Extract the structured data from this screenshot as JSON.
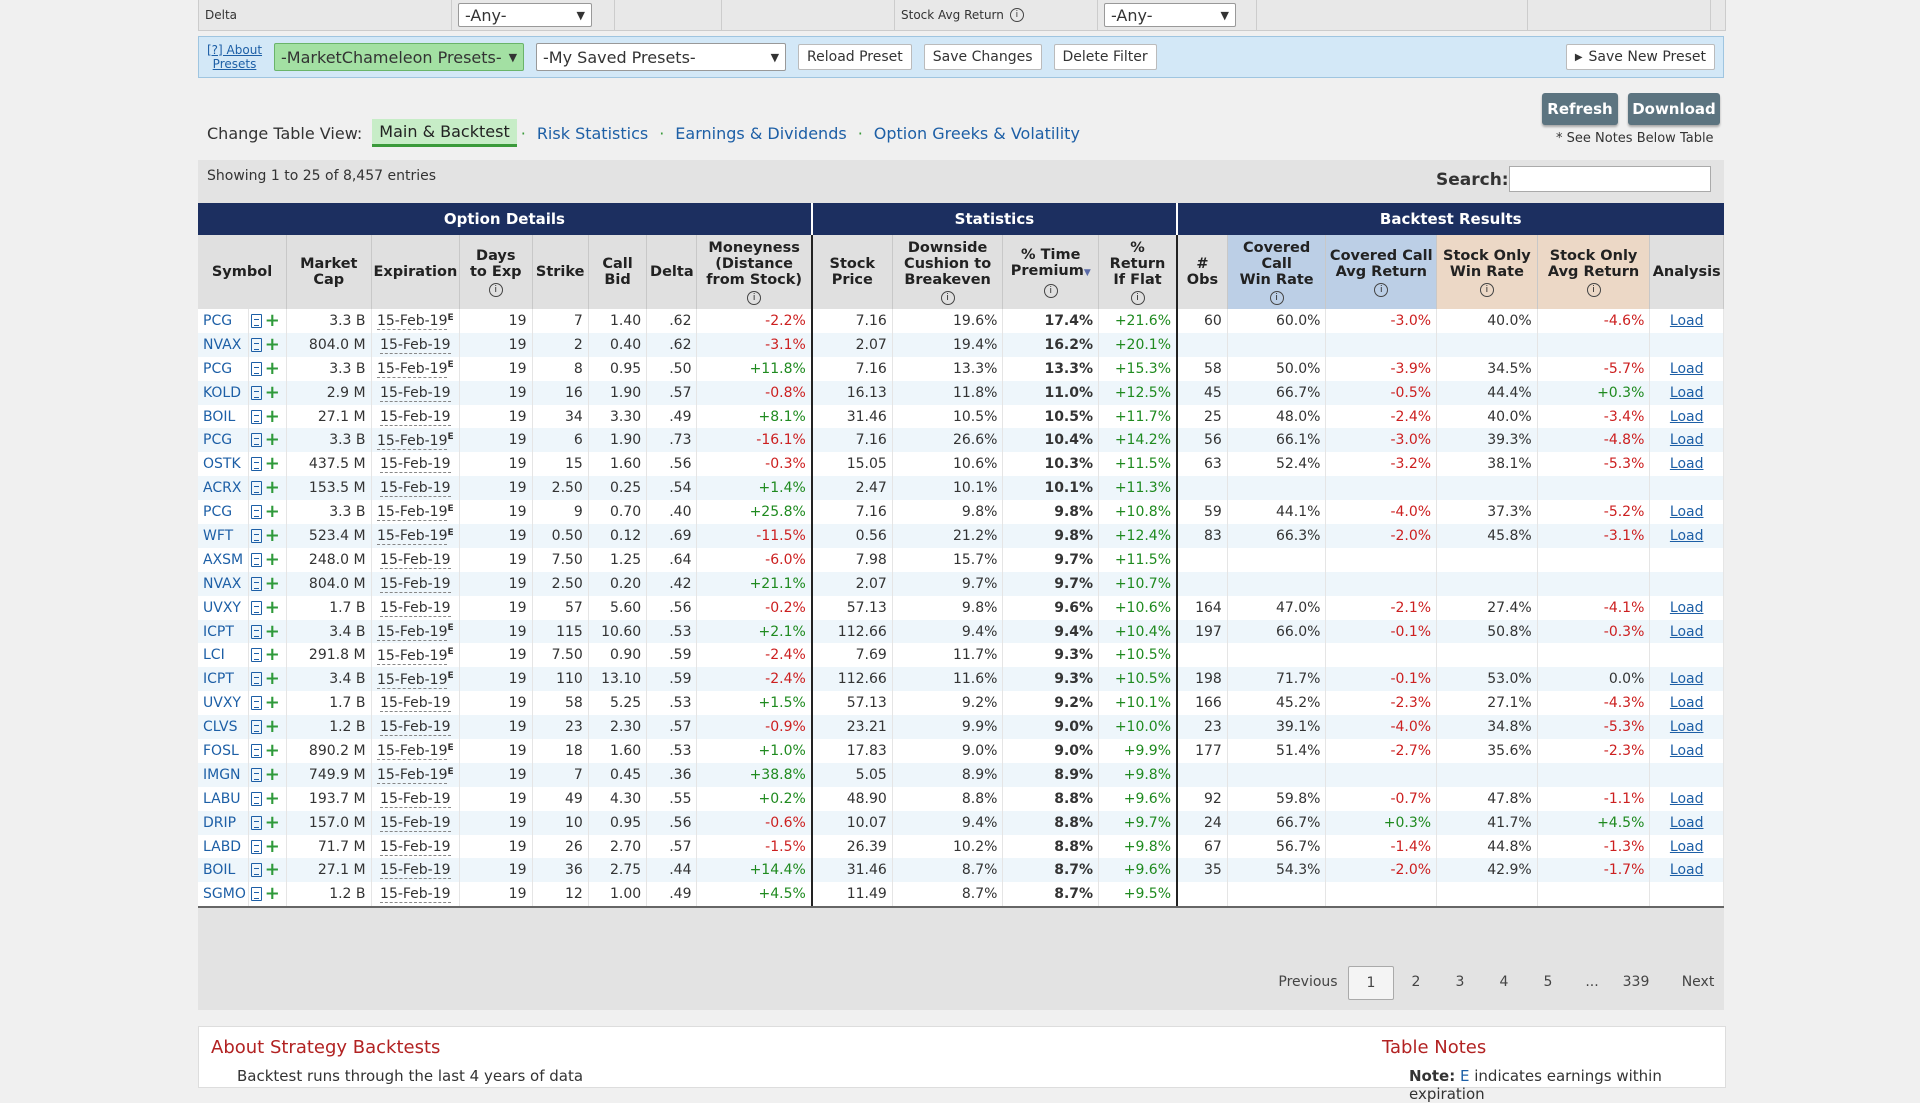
{
  "filters": {
    "delta_label": "Delta",
    "delta_value": "-Any-",
    "stock_avg_label": "Stock Avg Return",
    "stock_avg_value": "-Any-"
  },
  "presets": {
    "about_line1": "[?] About",
    "about_line2": "Presets",
    "mc_presets": "-MarketChameleon Presets-",
    "saved_presets": "-My Saved Presets-",
    "reload": "Reload Preset",
    "save_changes": "Save Changes",
    "delete": "Delete Filter",
    "save_new": "Save New Preset"
  },
  "actions": {
    "refresh": "Refresh",
    "download": "Download",
    "note": "* See Notes Below Table"
  },
  "view": {
    "label": "Change Table View:",
    "tabs": [
      "Main & Backtest",
      "Risk Statistics",
      "Earnings & Dividends",
      "Option Greeks & Volatility"
    ]
  },
  "table": {
    "showing": "Showing 1 to 25 of 8,457 entries",
    "search_label": "Search:",
    "groups": [
      "Option Details",
      "Statistics",
      "Backtest Results"
    ],
    "headers": {
      "symbol": "Symbol",
      "mcap1": "Market",
      "mcap2": "Cap",
      "exp": "Expiration",
      "days1": "Days",
      "days2": "to Exp",
      "strike": "Strike",
      "bid1": "Call",
      "bid2": "Bid",
      "delta": "Delta",
      "mon1": "Moneyness",
      "mon2": "(Distance",
      "mon3": "from Stock)",
      "price1": "Stock",
      "price2": "Price",
      "cush1": "Downside",
      "cush2": "Cushion to",
      "cush3": "Breakeven",
      "tp1": "% Time",
      "tp2": "Premium",
      "rf1": "%",
      "rf2": "Return",
      "rf3": "If Flat",
      "obs1": "#",
      "obs2": "Obs",
      "cw1": "Covered",
      "cw2": "Call",
      "cw3": "Win Rate",
      "cr1": "Covered Call",
      "cr2": "Avg Return",
      "sw1": "Stock Only",
      "sw2": "Win Rate",
      "sr1": "Stock Only",
      "sr2": "Avg Return",
      "analysis": "Analysis"
    },
    "rows": [
      {
        "sym": "PCG",
        "mcap": "3.3 B",
        "exp": "15-Feb-19",
        "earn": true,
        "days": "19",
        "strike": "7",
        "bid": "1.40",
        "delta": ".62",
        "mon": "-2.2%",
        "price": "7.16",
        "cush": "19.6%",
        "tp": "17.4%",
        "rf": "+21.6%",
        "obs": "60",
        "cw": "60.0%",
        "cr": "-3.0%",
        "sw": "40.0%",
        "sr": "-4.6%",
        "load": "Load"
      },
      {
        "sym": "NVAX",
        "mcap": "804.0 M",
        "exp": "15-Feb-19",
        "earn": false,
        "days": "19",
        "strike": "2",
        "bid": "0.40",
        "delta": ".62",
        "mon": "-3.1%",
        "price": "2.07",
        "cush": "19.4%",
        "tp": "16.2%",
        "rf": "+20.1%",
        "obs": "",
        "cw": "",
        "cr": "",
        "sw": "",
        "sr": "",
        "load": ""
      },
      {
        "sym": "PCG",
        "mcap": "3.3 B",
        "exp": "15-Feb-19",
        "earn": true,
        "days": "19",
        "strike": "8",
        "bid": "0.95",
        "delta": ".50",
        "mon": "+11.8%",
        "price": "7.16",
        "cush": "13.3%",
        "tp": "13.3%",
        "rf": "+15.3%",
        "obs": "58",
        "cw": "50.0%",
        "cr": "-3.9%",
        "sw": "34.5%",
        "sr": "-5.7%",
        "load": "Load"
      },
      {
        "sym": "KOLD",
        "mcap": "2.9 M",
        "exp": "15-Feb-19",
        "earn": false,
        "days": "19",
        "strike": "16",
        "bid": "1.90",
        "delta": ".57",
        "mon": "-0.8%",
        "price": "16.13",
        "cush": "11.8%",
        "tp": "11.0%",
        "rf": "+12.5%",
        "obs": "45",
        "cw": "66.7%",
        "cr": "-0.5%",
        "sw": "44.4%",
        "sr": "+0.3%",
        "load": "Load"
      },
      {
        "sym": "BOIL",
        "mcap": "27.1 M",
        "exp": "15-Feb-19",
        "earn": false,
        "days": "19",
        "strike": "34",
        "bid": "3.30",
        "delta": ".49",
        "mon": "+8.1%",
        "price": "31.46",
        "cush": "10.5%",
        "tp": "10.5%",
        "rf": "+11.7%",
        "obs": "25",
        "cw": "48.0%",
        "cr": "-2.4%",
        "sw": "40.0%",
        "sr": "-3.4%",
        "load": "Load"
      },
      {
        "sym": "PCG",
        "mcap": "3.3 B",
        "exp": "15-Feb-19",
        "earn": true,
        "days": "19",
        "strike": "6",
        "bid": "1.90",
        "delta": ".73",
        "mon": "-16.1%",
        "price": "7.16",
        "cush": "26.6%",
        "tp": "10.4%",
        "rf": "+14.2%",
        "obs": "56",
        "cw": "66.1%",
        "cr": "-3.0%",
        "sw": "39.3%",
        "sr": "-4.8%",
        "load": "Load"
      },
      {
        "sym": "OSTK",
        "mcap": "437.5 M",
        "exp": "15-Feb-19",
        "earn": false,
        "days": "19",
        "strike": "15",
        "bid": "1.60",
        "delta": ".56",
        "mon": "-0.3%",
        "price": "15.05",
        "cush": "10.6%",
        "tp": "10.3%",
        "rf": "+11.5%",
        "obs": "63",
        "cw": "52.4%",
        "cr": "-3.2%",
        "sw": "38.1%",
        "sr": "-5.3%",
        "load": "Load"
      },
      {
        "sym": "ACRX",
        "mcap": "153.5 M",
        "exp": "15-Feb-19",
        "earn": false,
        "days": "19",
        "strike": "2.50",
        "bid": "0.25",
        "delta": ".54",
        "mon": "+1.4%",
        "price": "2.47",
        "cush": "10.1%",
        "tp": "10.1%",
        "rf": "+11.3%",
        "obs": "",
        "cw": "",
        "cr": "",
        "sw": "",
        "sr": "",
        "load": ""
      },
      {
        "sym": "PCG",
        "mcap": "3.3 B",
        "exp": "15-Feb-19",
        "earn": true,
        "days": "19",
        "strike": "9",
        "bid": "0.70",
        "delta": ".40",
        "mon": "+25.8%",
        "price": "7.16",
        "cush": "9.8%",
        "tp": "9.8%",
        "rf": "+10.8%",
        "obs": "59",
        "cw": "44.1%",
        "cr": "-4.0%",
        "sw": "37.3%",
        "sr": "-5.2%",
        "load": "Load"
      },
      {
        "sym": "WFT",
        "mcap": "523.4 M",
        "exp": "15-Feb-19",
        "earn": true,
        "days": "19",
        "strike": "0.50",
        "bid": "0.12",
        "delta": ".69",
        "mon": "-11.5%",
        "price": "0.56",
        "cush": "21.2%",
        "tp": "9.8%",
        "rf": "+12.4%",
        "obs": "83",
        "cw": "66.3%",
        "cr": "-2.0%",
        "sw": "45.8%",
        "sr": "-3.1%",
        "load": "Load"
      },
      {
        "sym": "AXSM",
        "mcap": "248.0 M",
        "exp": "15-Feb-19",
        "earn": false,
        "days": "19",
        "strike": "7.50",
        "bid": "1.25",
        "delta": ".64",
        "mon": "-6.0%",
        "price": "7.98",
        "cush": "15.7%",
        "tp": "9.7%",
        "rf": "+11.5%",
        "obs": "",
        "cw": "",
        "cr": "",
        "sw": "",
        "sr": "",
        "load": ""
      },
      {
        "sym": "NVAX",
        "mcap": "804.0 M",
        "exp": "15-Feb-19",
        "earn": false,
        "days": "19",
        "strike": "2.50",
        "bid": "0.20",
        "delta": ".42",
        "mon": "+21.1%",
        "price": "2.07",
        "cush": "9.7%",
        "tp": "9.7%",
        "rf": "+10.7%",
        "obs": "",
        "cw": "",
        "cr": "",
        "sw": "",
        "sr": "",
        "load": ""
      },
      {
        "sym": "UVXY",
        "mcap": "1.7 B",
        "exp": "15-Feb-19",
        "earn": false,
        "days": "19",
        "strike": "57",
        "bid": "5.60",
        "delta": ".56",
        "mon": "-0.2%",
        "price": "57.13",
        "cush": "9.8%",
        "tp": "9.6%",
        "rf": "+10.6%",
        "obs": "164",
        "cw": "47.0%",
        "cr": "-2.1%",
        "sw": "27.4%",
        "sr": "-4.1%",
        "load": "Load"
      },
      {
        "sym": "ICPT",
        "mcap": "3.4 B",
        "exp": "15-Feb-19",
        "earn": true,
        "days": "19",
        "strike": "115",
        "bid": "10.60",
        "delta": ".53",
        "mon": "+2.1%",
        "price": "112.66",
        "cush": "9.4%",
        "tp": "9.4%",
        "rf": "+10.4%",
        "obs": "197",
        "cw": "66.0%",
        "cr": "-0.1%",
        "sw": "50.8%",
        "sr": "-0.3%",
        "load": "Load"
      },
      {
        "sym": "LCI",
        "mcap": "291.8 M",
        "exp": "15-Feb-19",
        "earn": true,
        "days": "19",
        "strike": "7.50",
        "bid": "0.90",
        "delta": ".59",
        "mon": "-2.4%",
        "price": "7.69",
        "cush": "11.7%",
        "tp": "9.3%",
        "rf": "+10.5%",
        "obs": "",
        "cw": "",
        "cr": "",
        "sw": "",
        "sr": "",
        "load": ""
      },
      {
        "sym": "ICPT",
        "mcap": "3.4 B",
        "exp": "15-Feb-19",
        "earn": true,
        "days": "19",
        "strike": "110",
        "bid": "13.10",
        "delta": ".59",
        "mon": "-2.4%",
        "price": "112.66",
        "cush": "11.6%",
        "tp": "9.3%",
        "rf": "+10.5%",
        "obs": "198",
        "cw": "71.7%",
        "cr": "-0.1%",
        "sw": "53.0%",
        "sr": "0.0%",
        "load": "Load"
      },
      {
        "sym": "UVXY",
        "mcap": "1.7 B",
        "exp": "15-Feb-19",
        "earn": false,
        "days": "19",
        "strike": "58",
        "bid": "5.25",
        "delta": ".53",
        "mon": "+1.5%",
        "price": "57.13",
        "cush": "9.2%",
        "tp": "9.2%",
        "rf": "+10.1%",
        "obs": "166",
        "cw": "45.2%",
        "cr": "-2.3%",
        "sw": "27.1%",
        "sr": "-4.3%",
        "load": "Load"
      },
      {
        "sym": "CLVS",
        "mcap": "1.2 B",
        "exp": "15-Feb-19",
        "earn": false,
        "days": "19",
        "strike": "23",
        "bid": "2.30",
        "delta": ".57",
        "mon": "-0.9%",
        "price": "23.21",
        "cush": "9.9%",
        "tp": "9.0%",
        "rf": "+10.0%",
        "obs": "23",
        "cw": "39.1%",
        "cr": "-4.0%",
        "sw": "34.8%",
        "sr": "-5.3%",
        "load": "Load"
      },
      {
        "sym": "FOSL",
        "mcap": "890.2 M",
        "exp": "15-Feb-19",
        "earn": true,
        "days": "19",
        "strike": "18",
        "bid": "1.60",
        "delta": ".53",
        "mon": "+1.0%",
        "price": "17.83",
        "cush": "9.0%",
        "tp": "9.0%",
        "rf": "+9.9%",
        "obs": "177",
        "cw": "51.4%",
        "cr": "-2.7%",
        "sw": "35.6%",
        "sr": "-2.3%",
        "load": "Load"
      },
      {
        "sym": "IMGN",
        "mcap": "749.9 M",
        "exp": "15-Feb-19",
        "earn": true,
        "days": "19",
        "strike": "7",
        "bid": "0.45",
        "delta": ".36",
        "mon": "+38.8%",
        "price": "5.05",
        "cush": "8.9%",
        "tp": "8.9%",
        "rf": "+9.8%",
        "obs": "",
        "cw": "",
        "cr": "",
        "sw": "",
        "sr": "",
        "load": ""
      },
      {
        "sym": "LABU",
        "mcap": "193.7 M",
        "exp": "15-Feb-19",
        "earn": false,
        "days": "19",
        "strike": "49",
        "bid": "4.30",
        "delta": ".55",
        "mon": "+0.2%",
        "price": "48.90",
        "cush": "8.8%",
        "tp": "8.8%",
        "rf": "+9.6%",
        "obs": "92",
        "cw": "59.8%",
        "cr": "-0.7%",
        "sw": "47.8%",
        "sr": "-1.1%",
        "load": "Load"
      },
      {
        "sym": "DRIP",
        "mcap": "157.0 M",
        "exp": "15-Feb-19",
        "earn": false,
        "days": "19",
        "strike": "10",
        "bid": "0.95",
        "delta": ".56",
        "mon": "-0.6%",
        "price": "10.07",
        "cush": "9.4%",
        "tp": "8.8%",
        "rf": "+9.7%",
        "obs": "24",
        "cw": "66.7%",
        "cr": "+0.3%",
        "sw": "41.7%",
        "sr": "+4.5%",
        "load": "Load"
      },
      {
        "sym": "LABD",
        "mcap": "71.7 M",
        "exp": "15-Feb-19",
        "earn": false,
        "days": "19",
        "strike": "26",
        "bid": "2.70",
        "delta": ".57",
        "mon": "-1.5%",
        "price": "26.39",
        "cush": "10.2%",
        "tp": "8.8%",
        "rf": "+9.8%",
        "obs": "67",
        "cw": "56.7%",
        "cr": "-1.4%",
        "sw": "44.8%",
        "sr": "-1.3%",
        "load": "Load"
      },
      {
        "sym": "BOIL",
        "mcap": "27.1 M",
        "exp": "15-Feb-19",
        "earn": false,
        "days": "19",
        "strike": "36",
        "bid": "2.75",
        "delta": ".44",
        "mon": "+14.4%",
        "price": "31.46",
        "cush": "8.7%",
        "tp": "8.7%",
        "rf": "+9.6%",
        "obs": "35",
        "cw": "54.3%",
        "cr": "-2.0%",
        "sw": "42.9%",
        "sr": "-1.7%",
        "load": "Load"
      },
      {
        "sym": "SGMO",
        "mcap": "1.2 B",
        "exp": "15-Feb-19",
        "earn": false,
        "days": "19",
        "strike": "12",
        "bid": "1.00",
        "delta": ".49",
        "mon": "+4.5%",
        "price": "11.49",
        "cush": "8.7%",
        "tp": "8.7%",
        "rf": "+9.5%",
        "obs": "",
        "cw": "",
        "cr": "",
        "sw": "",
        "sr": "",
        "load": ""
      }
    ]
  },
  "pagination": {
    "prev": "Previous",
    "pages": [
      "1",
      "2",
      "3",
      "4",
      "5",
      "...",
      "339"
    ],
    "next": "Next",
    "current": "1"
  },
  "about": {
    "title": "About Strategy Backtests",
    "line": "Backtest runs through the last 4 years of data",
    "notes_title": "Table Notes",
    "notes_note": "Note:",
    "notes_e": "E",
    "notes_text": "indicates earnings within expiration"
  }
}
